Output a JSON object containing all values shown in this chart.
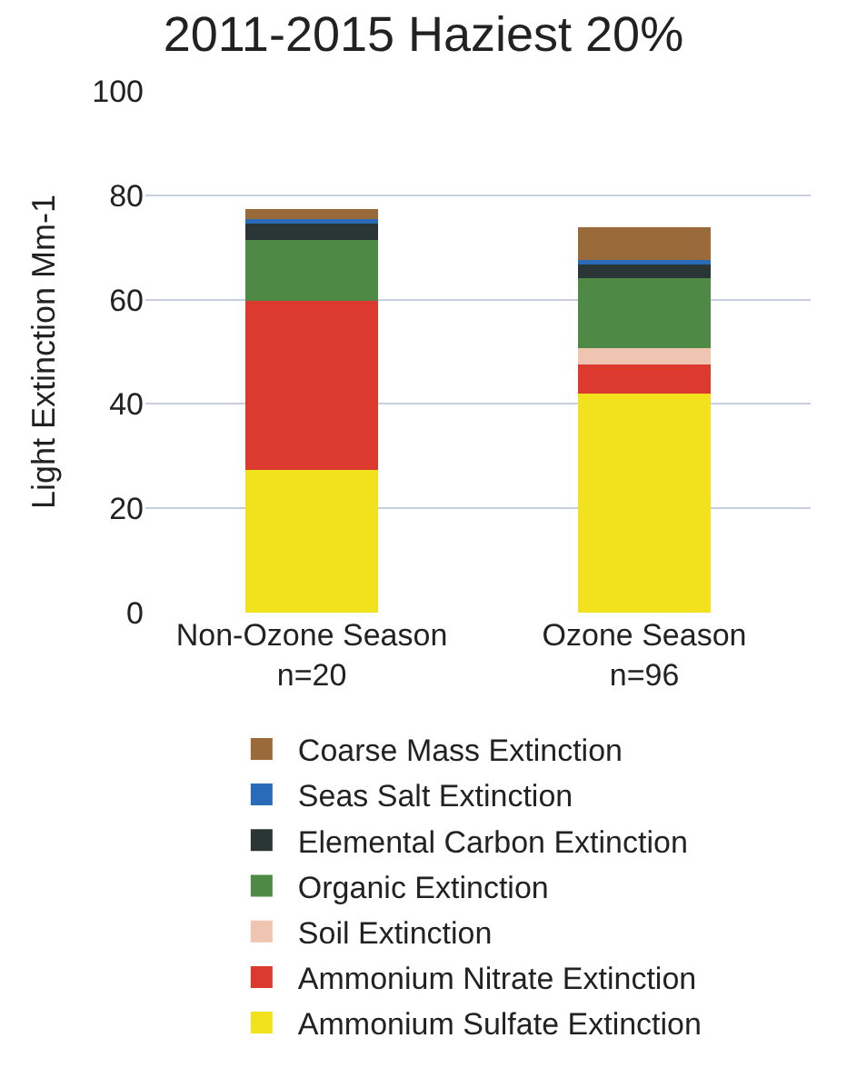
{
  "chart_data": {
    "type": "bar",
    "title": "2011-2015 Haziest 20%",
    "ylabel": "Light Extinction Mm-1",
    "categories": [
      "Non-Ozone Season n=20",
      "Ozone Season n=96"
    ],
    "stacked": true,
    "ylim": [
      0,
      100
    ],
    "yticks": [
      0,
      20,
      40,
      60,
      80,
      100
    ],
    "grid": "y",
    "legend": "bottom",
    "series": [
      {
        "name": "Ammonium Sulfate Extinction",
        "color": "#f2e21e",
        "values": [
          27.3,
          42
        ]
      },
      {
        "name": "Ammonium Nitrate Extinction",
        "color": "#dc3a2e",
        "values": [
          32.4,
          5.6
        ]
      },
      {
        "name": "Soil Extinction",
        "color": "#efc4b0",
        "values": [
          null,
          3.1
        ]
      },
      {
        "name": "Organic Extinction",
        "color": "#4e8a45",
        "values": [
          11.8,
          13.4
        ]
      },
      {
        "name": "Elemental Carbon Extinction",
        "color": "#2a3535",
        "values": [
          3.4,
          2.6
        ]
      },
      {
        "name": "Seas Salt Extinction",
        "color": "#2a6ab8",
        "values": [
          0.5,
          0.9
        ]
      },
      {
        "name": "Coarse Mass Extinction",
        "color": "#9a6a3a",
        "values": [
          1.9,
          6.3
        ]
      }
    ]
  }
}
